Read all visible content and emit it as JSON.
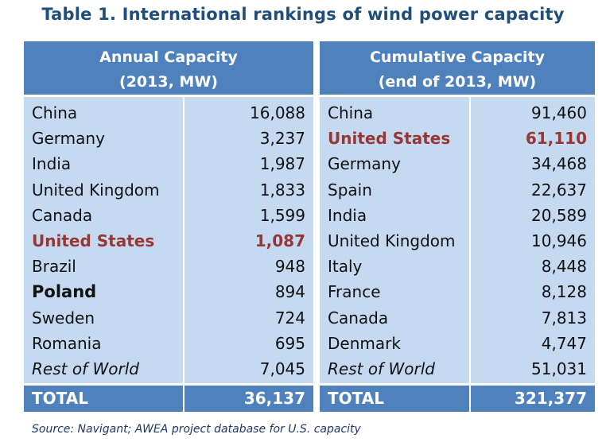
{
  "title": "Table 1. International rankings of wind power capacity",
  "annual": {
    "header_line1": "Annual Capacity",
    "header_line2": "(2013, MW)",
    "rows": [
      {
        "name": "China",
        "value": "16,088"
      },
      {
        "name": "Germany",
        "value": "3,237"
      },
      {
        "name": "India",
        "value": "1,987"
      },
      {
        "name": "United Kingdom",
        "value": "1,833"
      },
      {
        "name": "Canada",
        "value": "1,599"
      },
      {
        "name": "United States",
        "value": "1,087"
      },
      {
        "name": "Brazil",
        "value": "948"
      },
      {
        "name": "Poland",
        "value": "894"
      },
      {
        "name": "Sweden",
        "value": "724"
      },
      {
        "name": "Romania",
        "value": "695"
      },
      {
        "name": "Rest of World",
        "value": "7,045"
      }
    ],
    "total_label": "TOTAL",
    "total_value": "36,137"
  },
  "cumulative": {
    "header_line1": "Cumulative Capacity",
    "header_line2": "(end of 2013, MW)",
    "rows": [
      {
        "name": "China",
        "value": "91,460"
      },
      {
        "name": "United States",
        "value": "61,110"
      },
      {
        "name": "Germany",
        "value": "34,468"
      },
      {
        "name": "Spain",
        "value": "22,637"
      },
      {
        "name": "India",
        "value": "20,589"
      },
      {
        "name": "United Kingdom",
        "value": "10,946"
      },
      {
        "name": "Italy",
        "value": "8,448"
      },
      {
        "name": "France",
        "value": "8,128"
      },
      {
        "name": "Canada",
        "value": "7,813"
      },
      {
        "name": "Denmark",
        "value": "4,747"
      },
      {
        "name": "Rest of World",
        "value": "51,031"
      }
    ],
    "total_label": "TOTAL",
    "total_value": "321,377"
  },
  "source": "Source: Navigant; AWEA project database for U.S. capacity",
  "colors": {
    "header_bg": "#4f81bd",
    "body_bg": "#c5d9f1",
    "highlight": "#953735",
    "title": "#1f4e79"
  }
}
